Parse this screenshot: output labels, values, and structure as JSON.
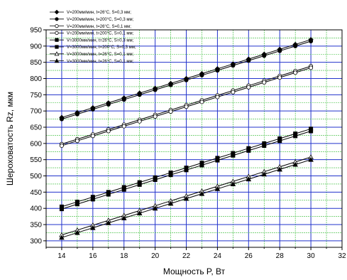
{
  "chart_data": {
    "type": "line",
    "title": "",
    "xlabel": "Мощность P, Вт",
    "ylabel": "Шероховатость Rz, мкм",
    "xlim": [
      13,
      32
    ],
    "ylim": [
      280,
      950
    ],
    "xticks": [
      14,
      16,
      18,
      20,
      22,
      24,
      26,
      28,
      30,
      32
    ],
    "yticks": [
      300,
      350,
      400,
      450,
      500,
      550,
      600,
      650,
      700,
      750,
      800,
      850,
      900,
      950
    ],
    "grid": true,
    "legend_position": "top-left",
    "x": [
      14,
      15,
      16,
      17,
      18,
      19,
      20,
      21,
      22,
      23,
      24,
      25,
      26,
      27,
      28,
      29,
      30
    ],
    "series": [
      {
        "name": "V=200мм/мин, t=26°C, S=0,3 мм;",
        "marker": "diamond-filled",
        "values": [
          680,
          695,
          710,
          725,
          740,
          755,
          770,
          785,
          800,
          815,
          830,
          845,
          860,
          875,
          890,
          905,
          920
        ]
      },
      {
        "name": "V=200мм/мин, t=200°C, S=0,3 мм;",
        "marker": "circle-filled",
        "values": [
          675,
          690,
          705,
          720,
          735,
          750,
          765,
          780,
          795,
          810,
          825,
          840,
          855,
          870,
          885,
          900,
          915
        ]
      },
      {
        "name": "V=200мм/мин, t=26°C, S=0,1 мм;",
        "marker": "circle-open",
        "values": [
          598,
          613,
          628,
          643,
          658,
          673,
          688,
          703,
          718,
          733,
          748,
          763,
          778,
          793,
          808,
          823,
          838
        ]
      },
      {
        "name": "V=200мм/мин, t=200°C, S=0,1 мм;",
        "marker": "circle-open",
        "values": [
          593,
          608,
          623,
          638,
          653,
          668,
          683,
          698,
          713,
          728,
          743,
          758,
          773,
          788,
          803,
          818,
          833
        ]
      },
      {
        "name": "V=3000мм/мин, t=26°C, S=0,3 мм;",
        "marker": "square-filled",
        "values": [
          405,
          420,
          435,
          450,
          465,
          480,
          495,
          510,
          525,
          540,
          555,
          570,
          585,
          600,
          615,
          630,
          645
        ]
      },
      {
        "name": "V=3000мм/мин, t=200°C, S=0,3 мм;",
        "marker": "square-filled",
        "values": [
          398,
          413,
          428,
          443,
          458,
          473,
          488,
          503,
          518,
          533,
          548,
          563,
          578,
          593,
          608,
          623,
          638
        ]
      },
      {
        "name": "V=3000мм/мин, t=26°C, S=0,1 мм;",
        "marker": "triangle-open",
        "values": [
          318,
          333,
          348,
          363,
          378,
          393,
          408,
          423,
          438,
          453,
          468,
          483,
          498,
          513,
          528,
          543,
          558
        ]
      },
      {
        "name": "V=3000мм/мин, t=26°C, S=0,1 мм;",
        "marker": "triangle-filled",
        "values": [
          310,
          325,
          340,
          355,
          370,
          385,
          400,
          415,
          430,
          445,
          460,
          475,
          490,
          505,
          520,
          535,
          550
        ]
      }
    ],
    "colors": {
      "line": "#000000",
      "grid_major": "#2233cc",
      "grid_minor": "#33bb33",
      "background": "#ffffff"
    }
  }
}
